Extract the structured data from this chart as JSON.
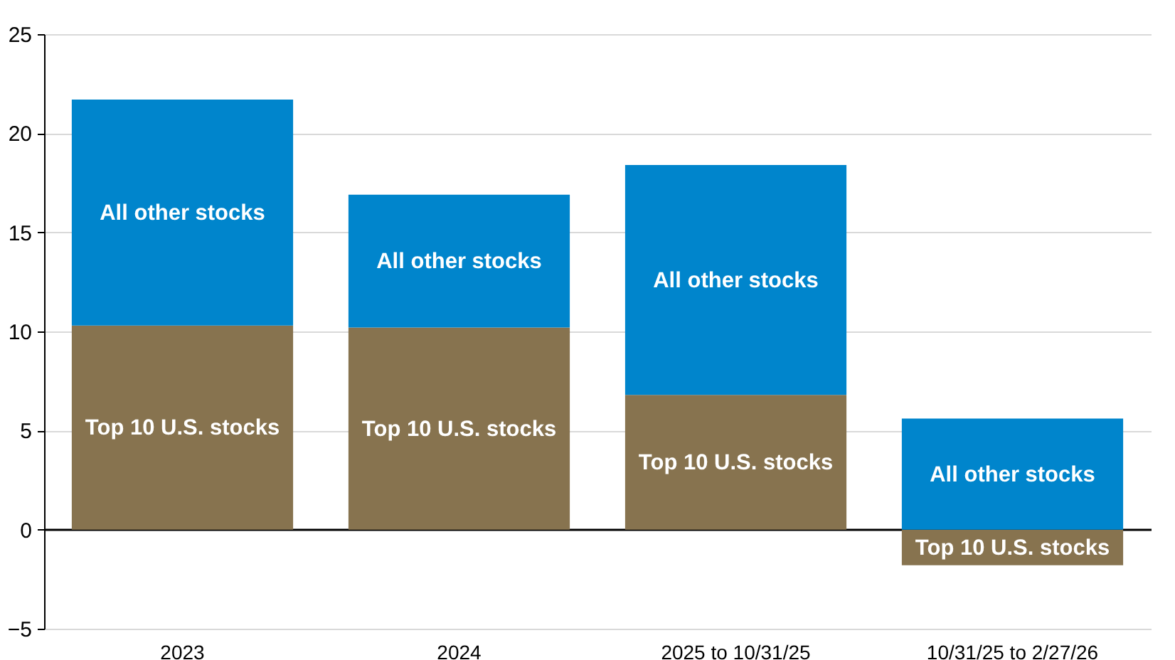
{
  "chart_data": {
    "type": "bar",
    "stacked": true,
    "categories": [
      "2023",
      "2024",
      "2025 to 10/31/25",
      "10/31/25 to 2/27/26"
    ],
    "series": [
      {
        "name": "Top 10 U.S. stocks",
        "color": "#87734f",
        "values": [
          10.3,
          10.2,
          6.8,
          -1.8
        ]
      },
      {
        "name": "All other stocks",
        "color": "#0085cc",
        "values": [
          11.4,
          6.7,
          11.6,
          5.6
        ]
      }
    ],
    "ylim": [
      -5,
      25
    ],
    "yticks": [
      -5,
      0,
      5,
      10,
      15,
      20,
      25
    ],
    "grid": "y",
    "legend": false
  }
}
